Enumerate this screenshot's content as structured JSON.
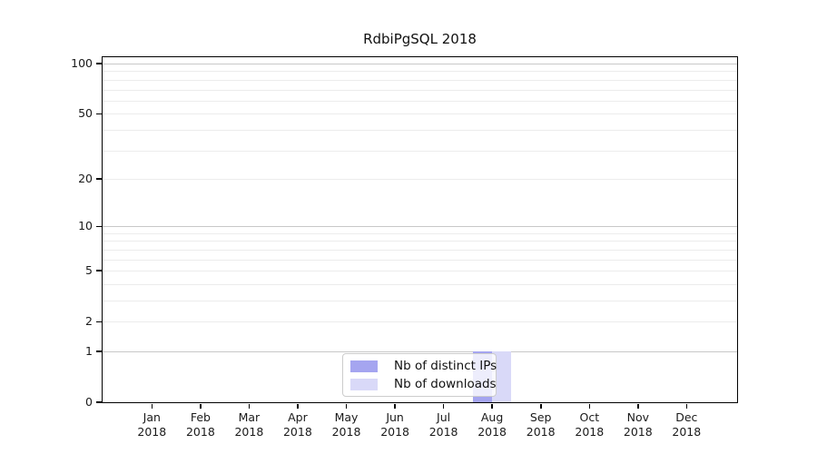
{
  "figure_title": "RdbiPgSQL 2018",
  "chart_data": {
    "type": "bar",
    "title": "RdbiPgSQL 2018",
    "categories": [
      "Jan 2018",
      "Feb 2018",
      "Mar 2018",
      "Apr 2018",
      "May 2018",
      "Jun 2018",
      "Jul 2018",
      "Aug 2018",
      "Sep 2018",
      "Oct 2018",
      "Nov 2018",
      "Dec 2018"
    ],
    "series": [
      {
        "name": "Nb of distinct IPs",
        "color": "#a5a5f0",
        "values": [
          0,
          0,
          0,
          0,
          0,
          0,
          0,
          1,
          0,
          0,
          0,
          0
        ]
      },
      {
        "name": "Nb of downloads",
        "color": "#d9d9f8",
        "values": [
          0,
          0,
          0,
          0,
          0,
          0,
          0,
          1,
          0,
          0,
          0,
          0
        ]
      }
    ],
    "xlabel": "",
    "ylabel": "",
    "yscale": "log1p",
    "ylim": [
      0,
      110
    ],
    "yticks": [
      0,
      1,
      2,
      5,
      10,
      20,
      50,
      100
    ],
    "major_gridlines": [
      1,
      10,
      100
    ],
    "minor_gridlines": [
      2,
      3,
      4,
      5,
      6,
      7,
      8,
      9,
      20,
      30,
      40,
      50,
      60,
      70,
      80,
      90
    ],
    "grid": "horizontal",
    "legend_position": "inside-bottom-center",
    "colors": {
      "major_grid": "#c8c8c8",
      "minor_grid": "#ececec",
      "spine": "#000000",
      "text": "#1a1a1a"
    }
  }
}
